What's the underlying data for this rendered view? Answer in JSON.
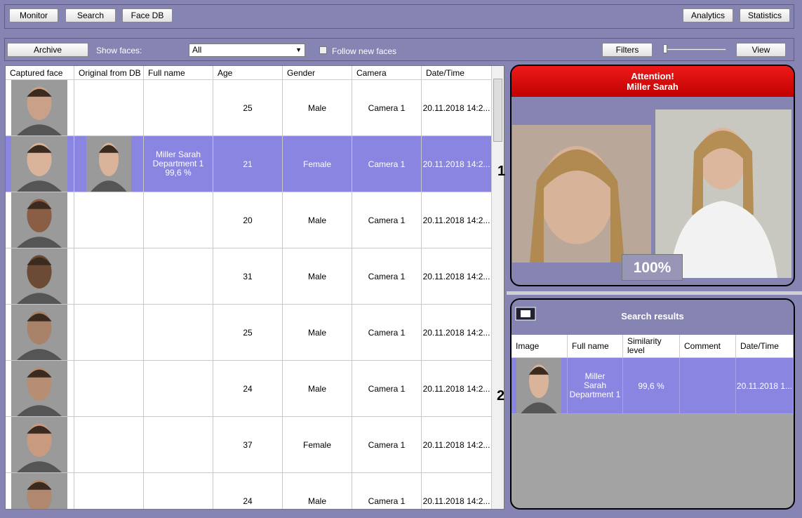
{
  "toolbar": {
    "left_buttons": [
      "Monitor",
      "Search",
      "Face DB"
    ],
    "right_buttons": [
      "Analytics",
      "Statistics"
    ]
  },
  "filterbar": {
    "archive": "Archive",
    "show_faces_label": "Show faces:",
    "show_faces_value": "All",
    "follow": "Follow new faces",
    "filters": "Filters",
    "view": "View"
  },
  "table": {
    "headers": [
      "Captured face",
      "Original from DB",
      "Full name",
      "Age",
      "Gender",
      "Camera",
      "Date/Time"
    ],
    "rows": [
      {
        "age": "25",
        "gender": "Male",
        "camera": "Camera 1",
        "datetime": "20.11.2018 14:2..."
      },
      {
        "full_name": [
          "Miller Sarah",
          "Department 1",
          "99,6 %"
        ],
        "age": "21",
        "gender": "Female",
        "camera": "Camera 1",
        "datetime": "20.11.2018 14:2...",
        "selected": true
      },
      {
        "age": "20",
        "gender": "Male",
        "camera": "Camera 1",
        "datetime": "20.11.2018 14:2..."
      },
      {
        "age": "31",
        "gender": "Male",
        "camera": "Camera 1",
        "datetime": "20.11.2018 14:2..."
      },
      {
        "age": "25",
        "gender": "Male",
        "camera": "Camera 1",
        "datetime": "20.11.2018 14:2..."
      },
      {
        "age": "24",
        "gender": "Male",
        "camera": "Camera 1",
        "datetime": "20.11.2018 14:2..."
      },
      {
        "age": "37",
        "gender": "Female",
        "camera": "Camera 1",
        "datetime": "20.11.2018 14:2..."
      },
      {
        "age": "24",
        "gender": "Male",
        "camera": "Camera 1",
        "datetime": "20.11.2018 14:2..."
      }
    ]
  },
  "alert": {
    "title": "Attention!",
    "name": "Miller Sarah",
    "similarity": "100%",
    "marker": "1"
  },
  "search": {
    "title": "Search results",
    "marker": "2",
    "headers": [
      "Image",
      "Full name",
      "Similarity level",
      "Comment",
      "Date/Time"
    ],
    "row": {
      "full_name": [
        "Miller",
        "Sarah",
        "Department 1"
      ],
      "similarity": "99,6 %",
      "datetime": "20.11.2018 1..."
    }
  }
}
